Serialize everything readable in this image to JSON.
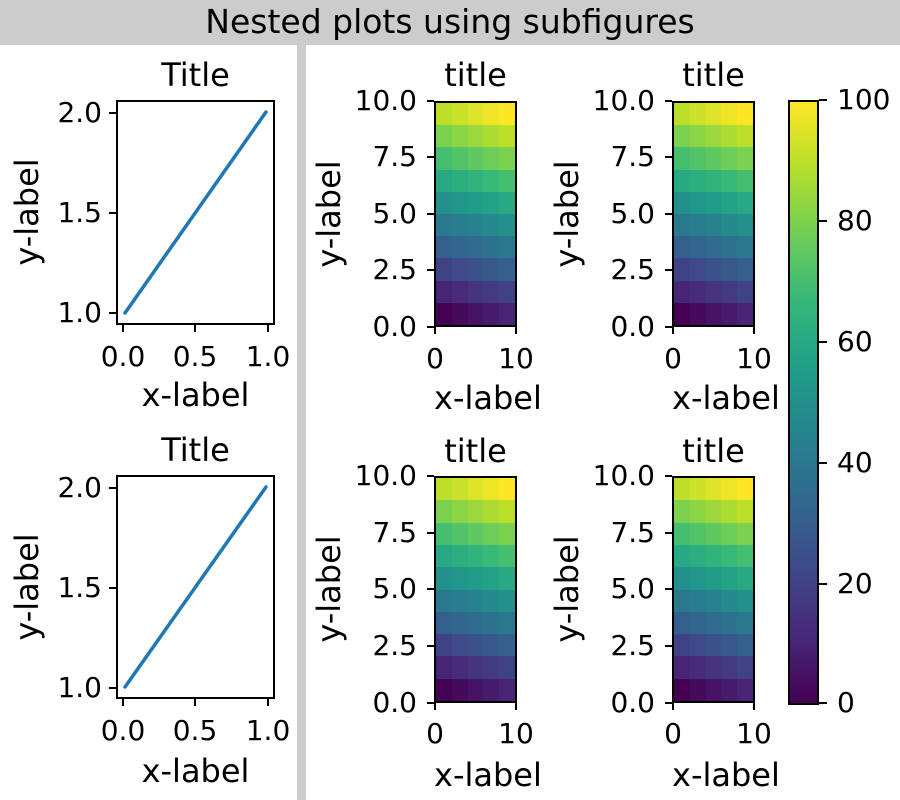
{
  "suptitle": "Nested plots using subfigures",
  "colors": {
    "figure_bg": "#cccccc",
    "subfigure_bg": "#ffffff",
    "line": "#1f77b4",
    "text": "#000000",
    "viridis": [
      "#440154",
      "#482878",
      "#3e4989",
      "#31688e",
      "#26828e",
      "#1f9e89",
      "#35b779",
      "#6ece58",
      "#b5de2b",
      "#fde725"
    ]
  },
  "left": {
    "plots": [
      {
        "title": "Title",
        "xlabel": "x-label",
        "ylabel": "y-label",
        "xticks": [
          "0.0",
          "0.5",
          "1.0"
        ],
        "yticks": [
          "2.0",
          "1.5",
          "1.0"
        ]
      },
      {
        "title": "Title",
        "xlabel": "x-label",
        "ylabel": "y-label",
        "xticks": [
          "0.0",
          "0.5",
          "1.0"
        ],
        "yticks": [
          "2.0",
          "1.5",
          "1.0"
        ]
      }
    ]
  },
  "right": {
    "plots": [
      {
        "title": "title",
        "xlabel": "x-label",
        "ylabel": "y-label",
        "xticks": [
          "0",
          "10"
        ],
        "yticks": [
          "10.0",
          "7.5",
          "5.0",
          "2.5",
          "0.0"
        ]
      },
      {
        "title": "title",
        "xlabel": "x-label",
        "ylabel": "y-label",
        "xticks": [
          "0",
          "10"
        ],
        "yticks": [
          "10.0",
          "7.5",
          "5.0",
          "2.5",
          "0.0"
        ]
      },
      {
        "title": "title",
        "xlabel": "x-label",
        "ylabel": "y-label",
        "xticks": [
          "0",
          "10"
        ],
        "yticks": [
          "10.0",
          "7.5",
          "5.0",
          "2.5",
          "0.0"
        ]
      },
      {
        "title": "title",
        "xlabel": "x-label",
        "ylabel": "y-label",
        "xticks": [
          "0",
          "10"
        ],
        "yticks": [
          "10.0",
          "7.5",
          "5.0",
          "2.5",
          "0.0"
        ]
      }
    ],
    "colorbar": {
      "ticks": [
        "100",
        "80",
        "60",
        "40",
        "20",
        "0"
      ]
    }
  },
  "chart_data": [
    {
      "id": "left-top",
      "type": "line",
      "title": "Title",
      "xlabel": "x-label",
      "ylabel": "y-label",
      "x": [
        0,
        1
      ],
      "y": [
        1,
        2
      ],
      "xticks": [
        0.0,
        0.5,
        1.0
      ],
      "yticks": [
        1.0,
        1.5,
        2.0
      ],
      "xlim": [
        -0.05,
        1.05
      ],
      "ylim": [
        0.95,
        2.05
      ],
      "line_color": "#1f77b4"
    },
    {
      "id": "left-bottom",
      "type": "line",
      "title": "Title",
      "xlabel": "x-label",
      "ylabel": "y-label",
      "x": [
        0,
        1
      ],
      "y": [
        1,
        2
      ],
      "xticks": [
        0.0,
        0.5,
        1.0
      ],
      "yticks": [
        1.0,
        1.5,
        2.0
      ],
      "xlim": [
        -0.05,
        1.05
      ],
      "ylim": [
        0.95,
        2.05
      ],
      "line_color": "#1f77b4"
    },
    {
      "id": "right-top-left",
      "type": "heatmap",
      "title": "title",
      "xlabel": "x-label",
      "ylabel": "y-label",
      "x_range": [
        0,
        10
      ],
      "y_range": [
        0,
        10
      ],
      "vmin": 0,
      "vmax": 100,
      "cmap": "viridis",
      "xticks": [
        0,
        10
      ],
      "yticks": [
        0.0,
        2.5,
        5.0,
        7.5,
        10.0
      ],
      "rows_order": "bottom-to-top",
      "values": [
        [
          0,
          2.5,
          5,
          7.5,
          10
        ],
        [
          10,
          12.5,
          15,
          17.5,
          20
        ],
        [
          20,
          22.5,
          25,
          27.5,
          30
        ],
        [
          30,
          32.5,
          35,
          37.5,
          40
        ],
        [
          40,
          42.5,
          45,
          47.5,
          50
        ],
        [
          50,
          52.5,
          55,
          57.5,
          60
        ],
        [
          60,
          62.5,
          65,
          67.5,
          70
        ],
        [
          70,
          72.5,
          75,
          77.5,
          80
        ],
        [
          80,
          82.5,
          85,
          87.5,
          90
        ],
        [
          90,
          92.5,
          95,
          97.5,
          100
        ]
      ]
    },
    {
      "id": "right-top-right",
      "type": "heatmap",
      "title": "title",
      "xlabel": "x-label",
      "ylabel": "y-label",
      "x_range": [
        0,
        10
      ],
      "y_range": [
        0,
        10
      ],
      "vmin": 0,
      "vmax": 100,
      "cmap": "viridis",
      "xticks": [
        0,
        10
      ],
      "yticks": [
        0.0,
        2.5,
        5.0,
        7.5,
        10.0
      ],
      "rows_order": "bottom-to-top",
      "values": [
        [
          0,
          2.5,
          5,
          7.5,
          10
        ],
        [
          10,
          12.5,
          15,
          17.5,
          20
        ],
        [
          20,
          22.5,
          25,
          27.5,
          30
        ],
        [
          30,
          32.5,
          35,
          37.5,
          40
        ],
        [
          40,
          42.5,
          45,
          47.5,
          50
        ],
        [
          50,
          52.5,
          55,
          57.5,
          60
        ],
        [
          60,
          62.5,
          65,
          67.5,
          70
        ],
        [
          70,
          72.5,
          75,
          77.5,
          80
        ],
        [
          80,
          82.5,
          85,
          87.5,
          90
        ],
        [
          90,
          92.5,
          95,
          97.5,
          100
        ]
      ]
    },
    {
      "id": "right-bottom-left",
      "type": "heatmap",
      "title": "title",
      "xlabel": "x-label",
      "ylabel": "y-label",
      "x_range": [
        0,
        10
      ],
      "y_range": [
        0,
        10
      ],
      "vmin": 0,
      "vmax": 100,
      "cmap": "viridis",
      "xticks": [
        0,
        10
      ],
      "yticks": [
        0.0,
        2.5,
        5.0,
        7.5,
        10.0
      ],
      "rows_order": "bottom-to-top",
      "values": [
        [
          0,
          2.5,
          5,
          7.5,
          10
        ],
        [
          10,
          12.5,
          15,
          17.5,
          20
        ],
        [
          20,
          22.5,
          25,
          27.5,
          30
        ],
        [
          30,
          32.5,
          35,
          37.5,
          40
        ],
        [
          40,
          42.5,
          45,
          47.5,
          50
        ],
        [
          50,
          52.5,
          55,
          57.5,
          60
        ],
        [
          60,
          62.5,
          65,
          67.5,
          70
        ],
        [
          70,
          72.5,
          75,
          77.5,
          80
        ],
        [
          80,
          82.5,
          85,
          87.5,
          90
        ],
        [
          90,
          92.5,
          95,
          97.5,
          100
        ]
      ]
    },
    {
      "id": "right-bottom-right",
      "type": "heatmap",
      "title": "title",
      "xlabel": "x-label",
      "ylabel": "y-label",
      "x_range": [
        0,
        10
      ],
      "y_range": [
        0,
        10
      ],
      "vmin": 0,
      "vmax": 100,
      "cmap": "viridis",
      "xticks": [
        0,
        10
      ],
      "yticks": [
        0.0,
        2.5,
        5.0,
        7.5,
        10.0
      ],
      "rows_order": "bottom-to-top",
      "values": [
        [
          0,
          2.5,
          5,
          7.5,
          10
        ],
        [
          10,
          12.5,
          15,
          17.5,
          20
        ],
        [
          20,
          22.5,
          25,
          27.5,
          30
        ],
        [
          30,
          32.5,
          35,
          37.5,
          40
        ],
        [
          40,
          42.5,
          45,
          47.5,
          50
        ],
        [
          50,
          52.5,
          55,
          57.5,
          60
        ],
        [
          60,
          62.5,
          65,
          67.5,
          70
        ],
        [
          70,
          72.5,
          75,
          77.5,
          80
        ],
        [
          80,
          82.5,
          85,
          87.5,
          90
        ],
        [
          90,
          92.5,
          95,
          97.5,
          100
        ]
      ]
    },
    {
      "id": "colorbar",
      "type": "colorbar",
      "cmap": "viridis",
      "vmin": 0,
      "vmax": 100,
      "ticks": [
        0,
        20,
        40,
        60,
        80,
        100
      ]
    }
  ]
}
